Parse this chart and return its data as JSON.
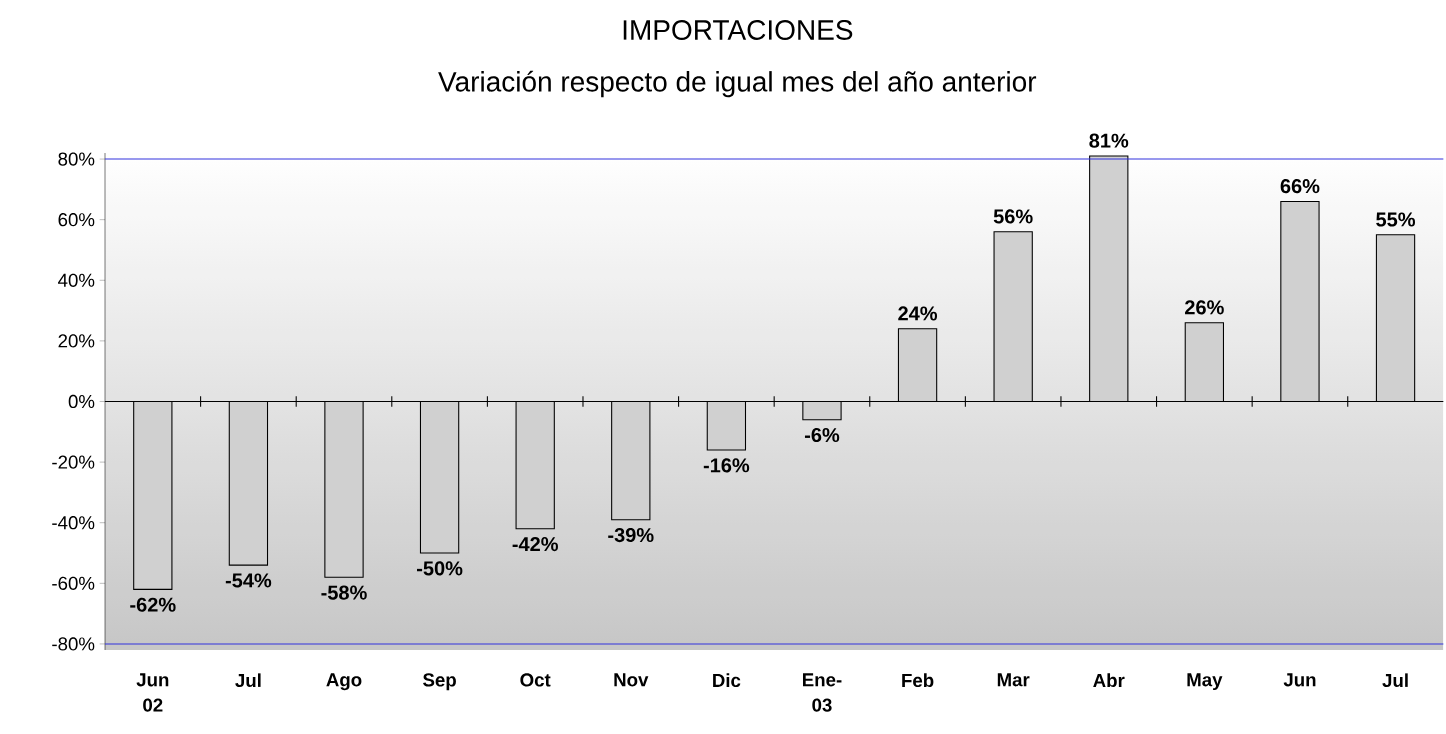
{
  "chart_data": {
    "type": "bar",
    "title": "IMPORTACIONES",
    "subtitle": "Variación respecto de igual mes del año anterior",
    "categories": [
      "Jun 02",
      "Jul",
      "Ago",
      "Sep",
      "Oct",
      "Nov",
      "Dic",
      "Ene-03",
      "Feb",
      "Mar",
      "Abr",
      "May",
      "Jun",
      "Jul"
    ],
    "values": [
      -62,
      -54,
      -58,
      -50,
      -42,
      -39,
      -16,
      -6,
      24,
      56,
      81,
      26,
      66,
      55
    ],
    "value_labels": [
      "-62%",
      "-54%",
      "-58%",
      "-50%",
      "-42%",
      "-39%",
      "-16%",
      "-6%",
      "24%",
      "56%",
      "81%",
      "26%",
      "66%",
      "55%"
    ],
    "color": "#d0d0d0",
    "ylim": [
      -82,
      82
    ],
    "ref_lines": [
      {
        "axis": "y",
        "value": 80,
        "color": "#3333dd"
      },
      {
        "axis": "y",
        "value": -80,
        "color": "#3333dd"
      }
    ],
    "yticks": [
      {
        "value": -80,
        "label": "-80%"
      },
      {
        "value": -60,
        "label": "-60%"
      },
      {
        "value": -40,
        "label": "-40%"
      },
      {
        "value": -20,
        "label": "-20%"
      },
      {
        "value": 0,
        "label": "0%"
      },
      {
        "value": 20,
        "label": "20%"
      },
      {
        "value": 40,
        "label": "40%"
      },
      {
        "value": 60,
        "label": "60%"
      },
      {
        "value": 80,
        "label": "80%"
      }
    ],
    "grid": false
  }
}
